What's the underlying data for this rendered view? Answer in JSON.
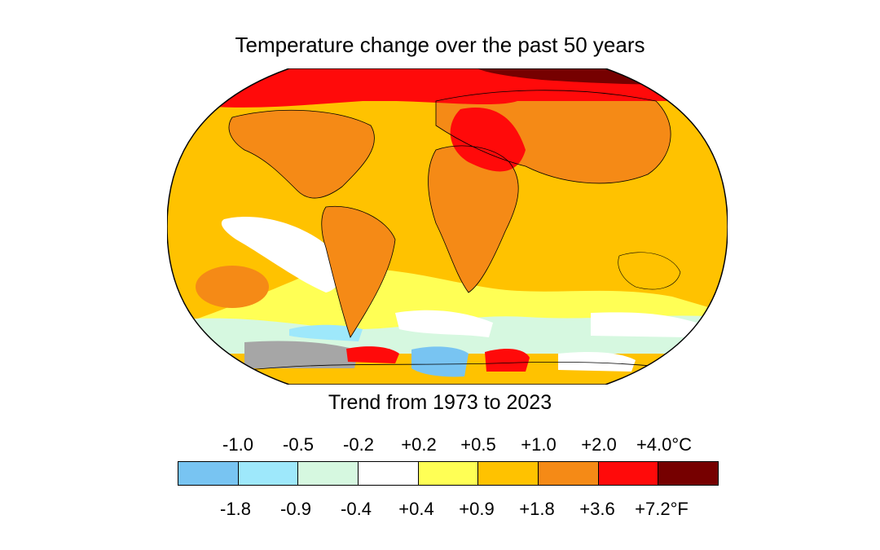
{
  "title": "Temperature change over the past 50 years",
  "subtitle": "Trend from 1973 to 2023",
  "legend": {
    "celsius_ticks": [
      "-1.0",
      "-0.5",
      "-0.2",
      "+0.2",
      "+0.5",
      "+1.0",
      "+2.0",
      "+4.0°C"
    ],
    "fahrenheit_ticks": [
      "-1.8",
      "-0.9",
      "-0.4",
      "+0.4",
      "+0.9",
      "+1.8",
      "+3.6",
      "+7.2°F"
    ],
    "colors": [
      "#78c4f2",
      "#9ee8fb",
      "#d6f8e0",
      "#ffffff",
      "#ffff55",
      "#ffc200",
      "#f58a16",
      "#ff0a0a",
      "#760000"
    ]
  },
  "map": {
    "missing_data_color": "#a6a6a6"
  }
}
